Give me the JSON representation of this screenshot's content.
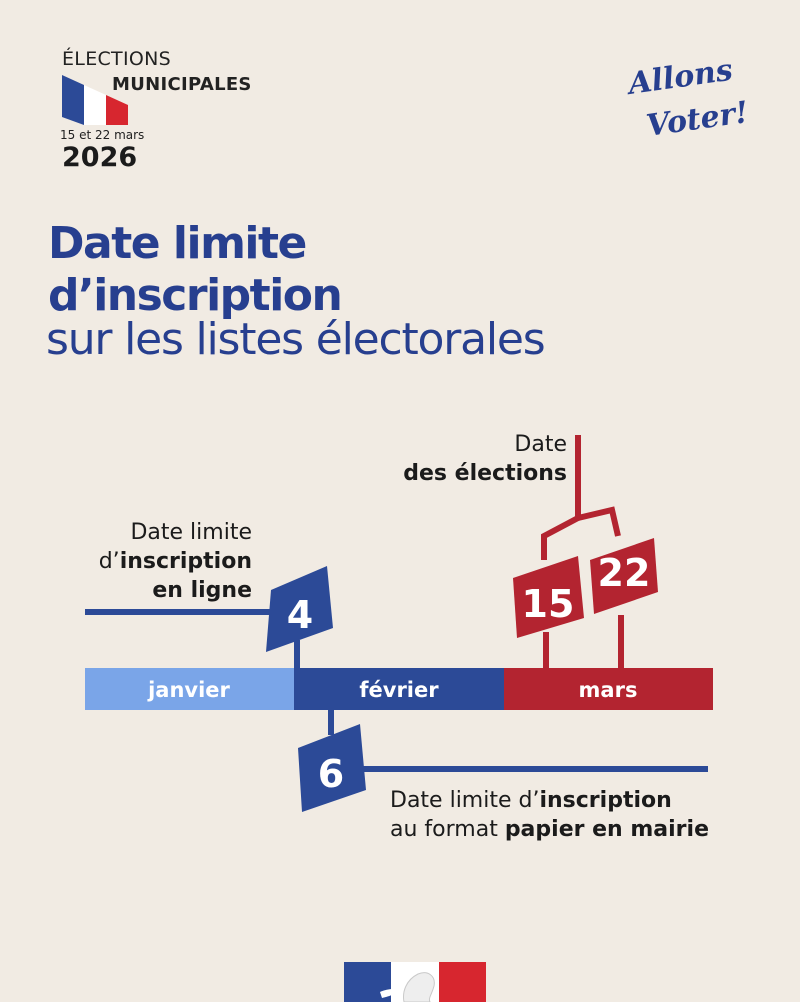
{
  "header": {
    "elections": "ÉLECTIONS",
    "municipales": "MUNICIPALES",
    "dates": "15 et 22 mars",
    "year": "2026"
  },
  "slogan": {
    "line1": "Allons",
    "line2": "Voter!"
  },
  "title": {
    "line1": "Date limite",
    "line2": "d’inscription",
    "line3": "sur les listes électorales"
  },
  "timeline": {
    "months": [
      "janvier",
      "février",
      "mars"
    ],
    "month_colors": [
      "#7aa5e8",
      "#2c4a97",
      "#b32430"
    ],
    "online": {
      "day": "4",
      "line1": "Date limite",
      "line2_prefix": "d’",
      "line2_bold": "inscription",
      "line3": "en ligne"
    },
    "paper": {
      "day": "6",
      "line1_prefix": "Date limite d’",
      "line1_bold": "inscription",
      "line2_prefix": "au format ",
      "line2_bold": "papier en mairie"
    },
    "elections": {
      "day1": "15",
      "day2": "22",
      "line1": "Date",
      "line2": "des élections"
    }
  },
  "colors": {
    "blue": "#2c4a97",
    "red": "#b32430",
    "light_blue": "#7aa5e8",
    "background": "#f1ebe3"
  }
}
